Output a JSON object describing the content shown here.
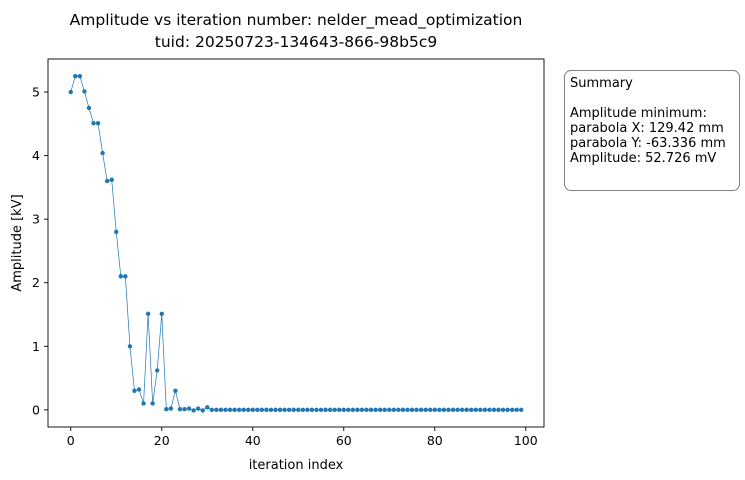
{
  "chart_data": {
    "type": "line",
    "title_line1": "Amplitude vs iteration number: nelder_mead_optimization",
    "title_line2": "tuid: 20250723-134643-866-98b5c9",
    "xlabel": "iteration index",
    "ylabel": "Amplitude [kV]",
    "xlim": [
      -5,
      104
    ],
    "ylim": [
      -0.27,
      5.52
    ],
    "xticks": [
      0,
      20,
      40,
      60,
      80,
      100
    ],
    "yticks": [
      0,
      1,
      2,
      3,
      4,
      5
    ],
    "grid": false,
    "line_color": "#1f77b4",
    "series": [
      {
        "x": [
          0,
          1,
          2,
          3,
          4,
          5,
          6,
          7,
          8,
          9,
          10,
          11,
          12,
          13,
          14,
          15,
          16,
          17,
          18,
          19,
          20,
          21,
          22,
          23,
          24,
          25,
          26,
          27,
          28,
          29,
          30,
          31,
          32,
          33,
          34,
          35,
          36,
          37,
          38,
          39,
          40,
          41,
          42,
          43,
          44,
          45,
          46,
          47,
          48,
          49,
          50,
          51,
          52,
          53,
          54,
          55,
          56,
          57,
          58,
          59,
          60,
          61,
          62,
          63,
          64,
          65,
          66,
          67,
          68,
          69,
          70,
          71,
          72,
          73,
          74,
          75,
          76,
          77,
          78,
          79,
          80,
          81,
          82,
          83,
          84,
          85,
          86,
          87,
          88,
          89,
          90,
          91,
          92,
          93,
          94,
          95,
          96,
          97,
          98,
          99
        ],
        "y": [
          5.0,
          5.25,
          5.25,
          5.01,
          4.75,
          4.51,
          4.51,
          4.04,
          3.6,
          3.62,
          2.8,
          2.1,
          2.1,
          1.0,
          0.3,
          0.32,
          0.1,
          1.51,
          0.1,
          0.62,
          1.51,
          0.01,
          0.02,
          0.3,
          0.01,
          0.01,
          0.02,
          -0.01,
          0.02,
          -0.01,
          0.04,
          0.0,
          0.0,
          0.0,
          0.0,
          0.0,
          0.0,
          0.0,
          0.0,
          0.0,
          0.0,
          0.0,
          0.0,
          0.0,
          0.0,
          0.0,
          0.0,
          0.0,
          0.0,
          0.0,
          0.0,
          0.0,
          0.0,
          0.0,
          0.0,
          0.0,
          0.0,
          0.0,
          0.0,
          0.0,
          0.0,
          0.0,
          0.0,
          0.0,
          0.0,
          0.0,
          0.0,
          0.0,
          0.0,
          0.0,
          0.0,
          0.0,
          0.0,
          0.0,
          0.0,
          0.0,
          0.0,
          0.0,
          0.0,
          0.0,
          0.0,
          0.0,
          0.0,
          0.0,
          0.0,
          0.0,
          0.0,
          0.0,
          0.0,
          0.0,
          0.0,
          0.0,
          0.0,
          0.0,
          0.0,
          0.0,
          0.0,
          0.0,
          0.0,
          0.0
        ]
      }
    ]
  },
  "summary": {
    "heading": "Summary",
    "line1": "Amplitude minimum:",
    "line2": "parabola X: 129.42 mm",
    "line3": "parabola Y: -63.336 mm",
    "line4": "Amplitude: 52.726 mV"
  }
}
